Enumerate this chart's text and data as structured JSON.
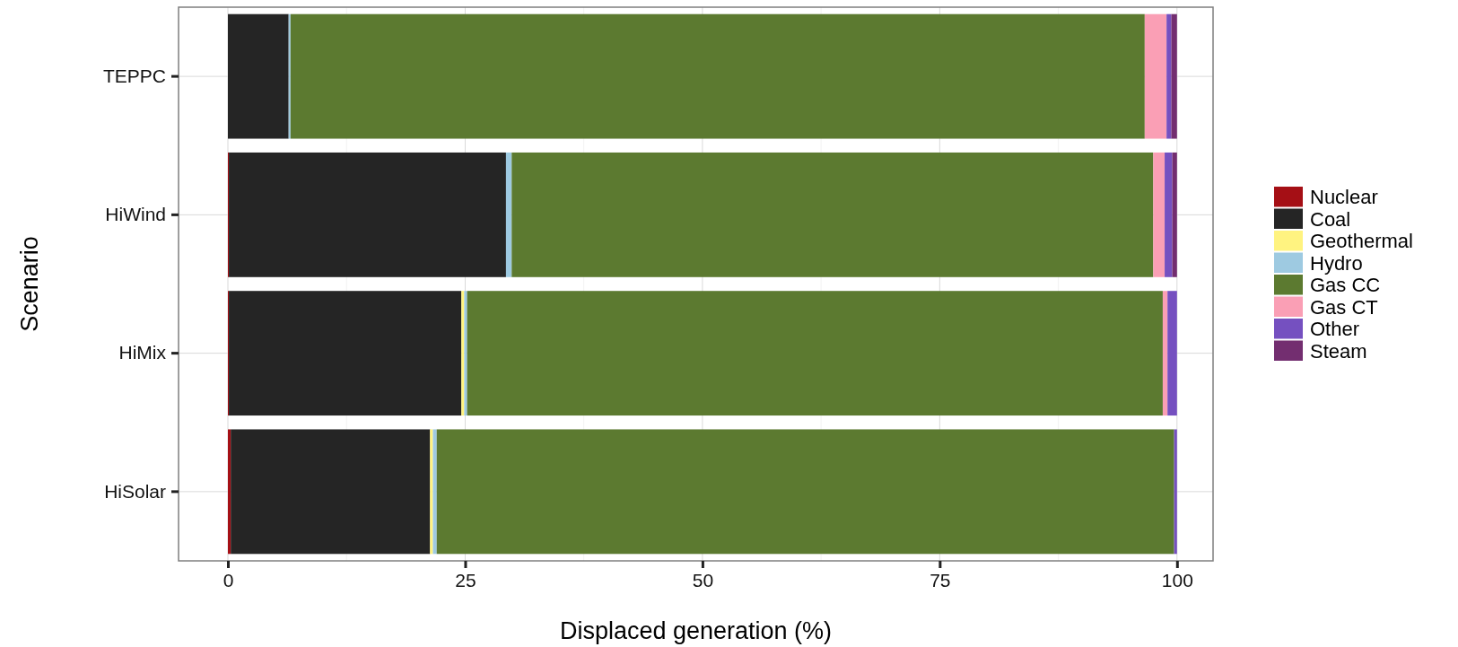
{
  "chart_data": {
    "type": "bar",
    "orientation": "horizontal",
    "stacked": true,
    "xlabel": "Displaced generation (%)",
    "ylabel": "Scenario",
    "categories": [
      "TEPPC",
      "HiWind",
      "HiMix",
      "HiSolar"
    ],
    "xlim": [
      -5.2,
      103.8
    ],
    "xticks": [
      0,
      25,
      50,
      75,
      100
    ],
    "grid": true,
    "legend": "right",
    "series": [
      {
        "name": "Nuclear",
        "color": "#a50f15",
        "values": [
          0,
          0.1,
          0.1,
          0.3
        ]
      },
      {
        "name": "Coal",
        "color": "#252525",
        "values": [
          6.4,
          29.2,
          24.5,
          21.0
        ]
      },
      {
        "name": "Geothermal",
        "color": "#fff380",
        "values": [
          0,
          0,
          0.3,
          0.3
        ]
      },
      {
        "name": "Hydro",
        "color": "#9ecae1",
        "values": [
          0.2,
          0.6,
          0.3,
          0.4
        ]
      },
      {
        "name": "Gas CC",
        "color": "#5c7a30",
        "values": [
          90.0,
          67.6,
          73.3,
          77.7
        ]
      },
      {
        "name": "Gas CT",
        "color": "#fa9fb5",
        "values": [
          2.3,
          1.2,
          0.5,
          0
        ]
      },
      {
        "name": "Other",
        "color": "#7550c0",
        "values": [
          0.5,
          0.8,
          1.0,
          0.3
        ]
      },
      {
        "name": "Steam",
        "color": "#732e70",
        "values": [
          0.6,
          0.5,
          0,
          0
        ]
      }
    ]
  }
}
